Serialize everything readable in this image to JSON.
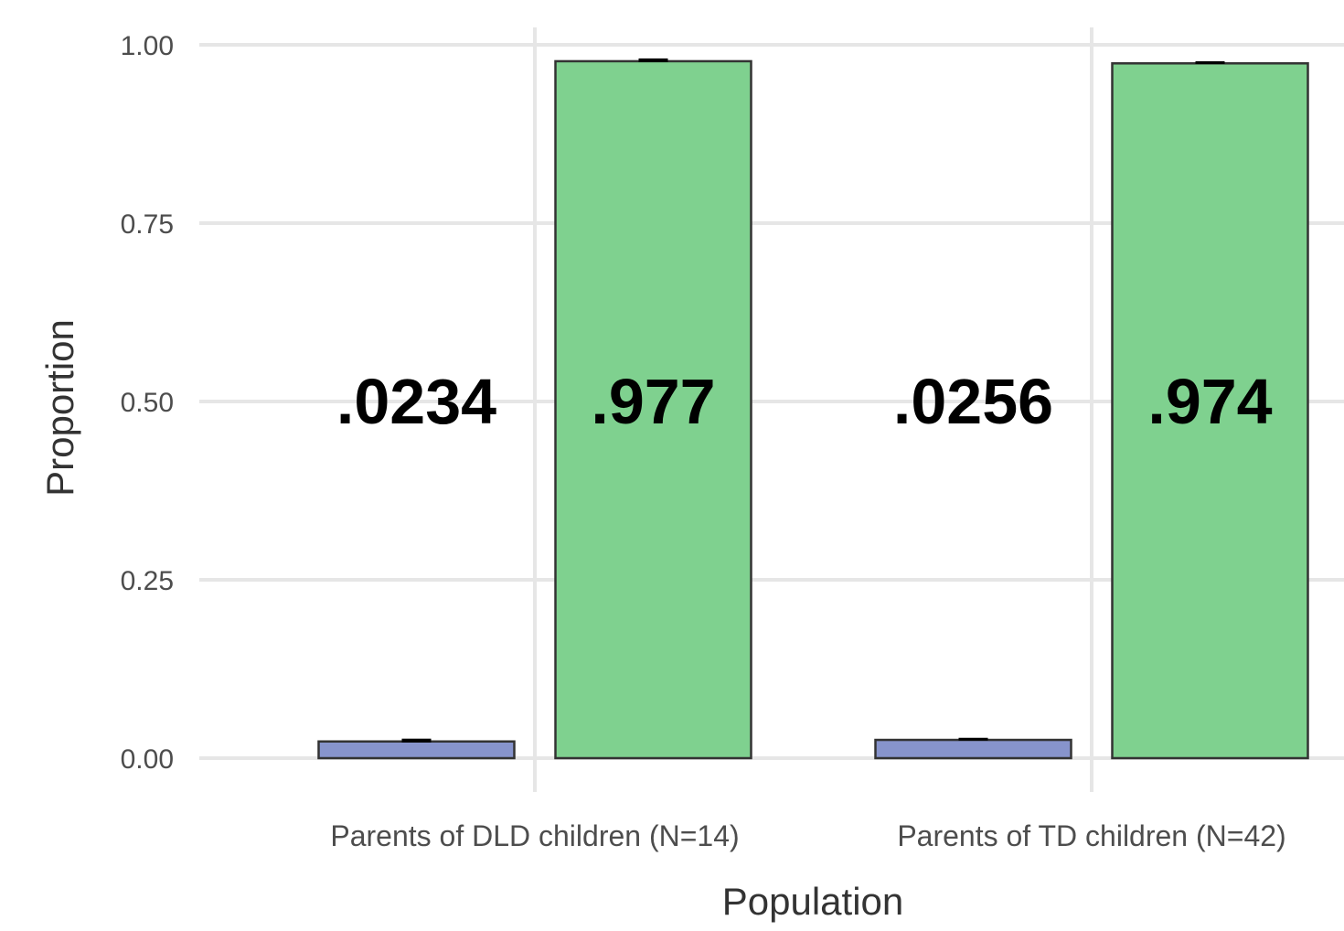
{
  "chart_data": {
    "type": "bar",
    "xlabel": "Population",
    "ylabel": "Proportion",
    "ylim": [
      0,
      1
    ],
    "yticks": [
      0,
      0.25,
      0.5,
      0.75,
      1
    ],
    "ytick_labels": [
      "0.00",
      "0.25",
      "0.50",
      "0.75",
      "1.00"
    ],
    "categories": [
      "Parents of DLD children (N=14)",
      "Parents of TD children (N=42)"
    ],
    "series": [
      {
        "values": [
          0.0234,
          0.0256
        ],
        "errors": [
          0.002,
          0.001
        ],
        "data_labels": [
          ".0234",
          ".0256"
        ],
        "color": "#8794cc"
      },
      {
        "values": [
          0.977,
          0.974
        ],
        "errors": [
          0.002,
          0.001
        ],
        "data_labels": [
          ".977",
          ".974"
        ],
        "color": "#7fd18f"
      }
    ],
    "grid": true,
    "legend": "none"
  }
}
